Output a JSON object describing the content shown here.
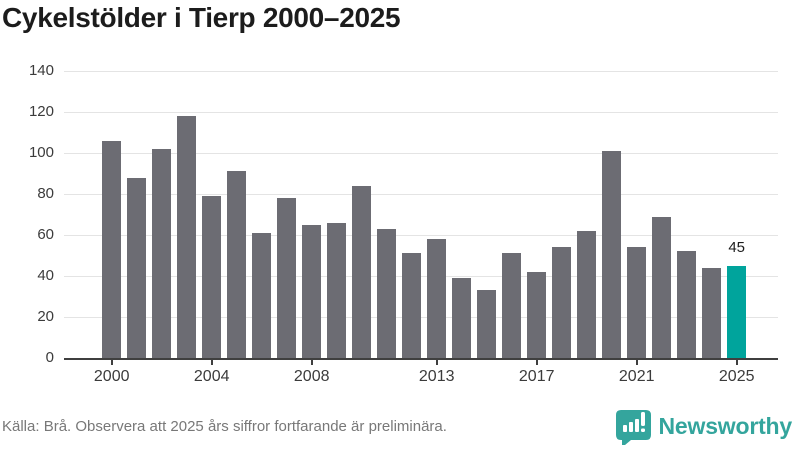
{
  "title": "Cykelstölder i Tierp 2000–2025",
  "footer": {
    "source": "Källa: Brå. Observera att 2025 års siffror fortfarande är preliminära.",
    "brand": "Newsworthy"
  },
  "colors": {
    "title_text": "#1c1c1c",
    "bar": "#6c6c73",
    "accent": "#00a49c",
    "grid": "#e4e4e4",
    "axis": "#3f3f3f",
    "tick_label": "#3b3b3b",
    "data_label": "#1d1d1d",
    "footer_text": "#787878",
    "logo": "#34a59d"
  },
  "chart_data": {
    "type": "bar",
    "title": "Cykelstölder i Tierp 2000–2025",
    "x": [
      2000,
      2001,
      2002,
      2003,
      2004,
      2005,
      2006,
      2007,
      2008,
      2009,
      2010,
      2011,
      2012,
      2013,
      2014,
      2015,
      2016,
      2017,
      2018,
      2019,
      2020,
      2021,
      2022,
      2023,
      2024,
      2025
    ],
    "values": [
      106,
      88,
      102,
      118,
      79,
      91,
      61,
      78,
      65,
      66,
      84,
      63,
      51,
      58,
      39,
      33,
      51,
      42,
      54,
      62,
      101,
      54,
      69,
      52,
      44,
      45
    ],
    "highlight_x": 2025,
    "ylim": [
      0,
      140
    ],
    "y_ticks": [
      0,
      20,
      40,
      60,
      80,
      100,
      120,
      140
    ],
    "x_ticks": [
      2000,
      2004,
      2008,
      2013,
      2017,
      2021,
      2025
    ],
    "data_labels": [
      {
        "x": 2025,
        "text": "45"
      }
    ],
    "grid": true,
    "legend": false
  }
}
